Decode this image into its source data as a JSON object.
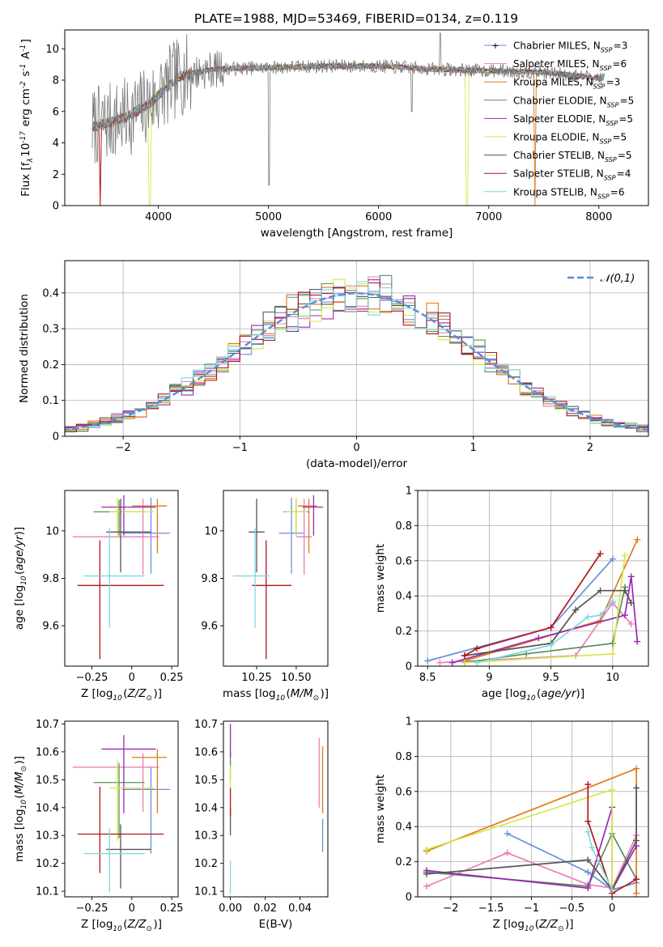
{
  "figure": {
    "title": "PLATE=1988, MJD=53469, FIBERID=0134, z=0.119"
  },
  "models": [
    {
      "name": "Chabrier MILES, N$_{SSP}$=3",
      "color": "#6a8fdb"
    },
    {
      "name": "Salpeter MILES, N$_{SSP}$=6",
      "color": "#e87fb8"
    },
    {
      "name": "Kroupa MILES, N$_{SSP}$=3",
      "color": "#e07a1f"
    },
    {
      "name": "Chabrier ELODIE, N$_{SSP}$=5",
      "color": "#5a8f5a"
    },
    {
      "name": "Salpeter ELODIE, N$_{SSP}$=5",
      "color": "#9b27b5"
    },
    {
      "name": "Kroupa ELODIE, N$_{SSP}$=5",
      "color": "#d4e84a"
    },
    {
      "name": "Chabrier STELIB, N$_{SSP}$=5",
      "color": "#555555"
    },
    {
      "name": "Salpeter STELIB, N$_{SSP}$=4",
      "color": "#b0161b"
    },
    {
      "name": "Kroupa STELIB, N$_{SSP}$=6",
      "color": "#7dd8e0"
    }
  ],
  "chart_data": [
    {
      "id": "spectrum",
      "type": "line",
      "xlabel": "wavelength [Angstrom, rest frame]",
      "ylabel": "Flux [f$_\\lambda$10$^{-17}$ erg cm$^{-2}$ s$^{-1}$ A$^{-1}$]",
      "xlim": [
        3150,
        8450
      ],
      "ylim": [
        0,
        11.2
      ],
      "xticks": [
        4000,
        5000,
        6000,
        7000,
        8000
      ],
      "yticks": [
        0,
        2,
        4,
        6,
        8,
        10
      ],
      "legend": "upper-right",
      "x_range_data": [
        3400,
        8050
      ],
      "continuum": [
        [
          3400,
          5.0
        ],
        [
          3500,
          5.2
        ],
        [
          3700,
          5.6
        ],
        [
          3900,
          6.4
        ],
        [
          4000,
          7.0
        ],
        [
          4200,
          8.3
        ],
        [
          4500,
          8.7
        ],
        [
          5000,
          8.8
        ],
        [
          5500,
          8.9
        ],
        [
          6000,
          8.9
        ],
        [
          6500,
          8.7
        ],
        [
          7000,
          8.6
        ],
        [
          7500,
          8.5
        ],
        [
          8050,
          8.1
        ]
      ],
      "drops": [
        {
          "model": 2,
          "x": 3470
        },
        {
          "model": 7,
          "x": 3470
        },
        {
          "model": 5,
          "x": 3920
        },
        {
          "model": 5,
          "x": 6800
        },
        {
          "model": 2,
          "x": 7420
        }
      ]
    },
    {
      "id": "residual-histogram",
      "type": "bar",
      "xlabel": "(data-model)/error",
      "ylabel": "Normed distribution",
      "xlim": [
        -2.5,
        2.5
      ],
      "ylim": [
        0,
        0.49
      ],
      "xticks": [
        -2,
        -1,
        0,
        1,
        2
      ],
      "yticks": [
        0.0,
        0.1,
        0.2,
        0.3,
        0.4
      ],
      "bin_width": 0.1,
      "legend": "upper-right",
      "gaussian": {
        "label": "$\\mathcal{N}(0,1)$",
        "mean": 0,
        "sigma": 1,
        "color": "#5b8bd6"
      }
    },
    {
      "id": "age-vs-Z",
      "type": "scatter",
      "xlabel": "Z [log$_{10}$($Z/Z_\\odot$)]",
      "ylabel": "age  [log$_{10}$($age/yr$)]",
      "xlim": [
        -0.42,
        0.29
      ],
      "ylim": [
        9.43,
        10.17
      ],
      "xticks": [
        -0.25,
        0.0,
        0.25
      ],
      "yticks": [
        9.6,
        9.8,
        10.0
      ],
      "points": [
        {
          "model": 0,
          "x": 0.12,
          "y": 9.99,
          "xerr": [
            0.18,
            0.12
          ],
          "yerr": [
            0.17,
            0.15
          ]
        },
        {
          "model": 1,
          "x": 0.07,
          "y": 9.975,
          "xerr": [
            0.44,
            0.1
          ],
          "yerr": [
            0.16,
            0.16
          ]
        },
        {
          "model": 2,
          "x": 0.16,
          "y": 10.105,
          "xerr": [
            0.16,
            0.06
          ],
          "yerr": [
            0.2,
            0.03
          ]
        },
        {
          "model": 3,
          "x": -0.08,
          "y": 10.08,
          "xerr": [
            0.16,
            0.16
          ],
          "yerr": [
            0.1,
            0.05
          ]
        },
        {
          "model": 4,
          "x": -0.05,
          "y": 10.1,
          "xerr": [
            0.14,
            0.2
          ],
          "yerr": [
            0.12,
            0.05
          ]
        },
        {
          "model": 5,
          "x": -0.09,
          "y": 10.08,
          "xerr": [
            0.05,
            0.23
          ],
          "yerr": [
            0.1,
            0.06
          ]
        },
        {
          "model": 6,
          "x": -0.07,
          "y": 9.995,
          "xerr": [
            0.09,
            0.19
          ],
          "yerr": [
            0.17,
            0.14
          ]
        },
        {
          "model": 7,
          "x": -0.2,
          "y": 9.77,
          "xerr": [
            0.14,
            0.4
          ],
          "yerr": [
            0.31,
            0.19
          ]
        },
        {
          "model": 8,
          "x": -0.14,
          "y": 9.81,
          "xerr": [
            0.16,
            0.22
          ],
          "yerr": [
            0.22,
            0.2
          ]
        }
      ]
    },
    {
      "id": "age-vs-mass",
      "type": "scatter",
      "xlabel": "mass [log$_{10}$($M/M_\\odot$)]",
      "ylabel": "",
      "xlim": [
        10.04,
        10.7
      ],
      "ylim": [
        9.43,
        10.17
      ],
      "xticks": [
        10.25,
        10.5
      ],
      "xtick_labels": [
        "10.25",
        "10.50"
      ],
      "yticks": [
        9.6,
        9.8,
        10.0
      ],
      "points": [
        {
          "model": 0,
          "x": 10.47,
          "y": 9.99,
          "xerr": [
            0.08,
            0.08
          ],
          "yerr": [
            0.17,
            0.15
          ]
        },
        {
          "model": 1,
          "x": 10.55,
          "y": 9.975,
          "xerr": [
            0.05,
            0.05
          ],
          "yerr": [
            0.16,
            0.16
          ]
        },
        {
          "model": 2,
          "x": 10.58,
          "y": 10.105,
          "xerr": [
            0.07,
            0.05
          ],
          "yerr": [
            0.2,
            0.03
          ]
        },
        {
          "model": 3,
          "x": 10.5,
          "y": 10.08,
          "xerr": [
            0.08,
            0.08
          ],
          "yerr": [
            0.1,
            0.05
          ]
        },
        {
          "model": 4,
          "x": 10.61,
          "y": 10.1,
          "xerr": [
            0.07,
            0.06
          ],
          "yerr": [
            0.12,
            0.05
          ]
        },
        {
          "model": 5,
          "x": 10.5,
          "y": 10.08,
          "xerr": [
            0.07,
            0.07
          ],
          "yerr": [
            0.1,
            0.06
          ]
        },
        {
          "model": 6,
          "x": 10.25,
          "y": 9.995,
          "xerr": [
            0.05,
            0.05
          ],
          "yerr": [
            0.17,
            0.14
          ]
        },
        {
          "model": 7,
          "x": 10.31,
          "y": 9.77,
          "xerr": [
            0.09,
            0.16
          ],
          "yerr": [
            0.31,
            0.19
          ]
        },
        {
          "model": 8,
          "x": 10.24,
          "y": 9.81,
          "xerr": [
            0.14,
            0.09
          ],
          "yerr": [
            0.22,
            0.2
          ]
        }
      ]
    },
    {
      "id": "weight-vs-age",
      "type": "line",
      "xlabel": "age  [log$_{10}$($age/yr$)]",
      "ylabel": "mass weight",
      "xlim": [
        8.42,
        10.29
      ],
      "ylim": [
        0,
        1.0
      ],
      "xticks": [
        8.5,
        9.0,
        9.5,
        10.0
      ],
      "yticks": [
        0.0,
        0.2,
        0.4,
        0.6,
        0.8,
        1.0
      ],
      "series": [
        {
          "model": 0,
          "x": [
            8.5,
            9.5,
            10.0
          ],
          "y": [
            0.03,
            0.22,
            0.61
          ]
        },
        {
          "model": 1,
          "x": [
            8.6,
            9.7,
            10.0,
            10.15
          ],
          "y": [
            0.02,
            0.06,
            0.36,
            0.24
          ]
        },
        {
          "model": 2,
          "x": [
            8.8,
            9.9,
            10.2
          ],
          "y": [
            0.03,
            0.26,
            0.72
          ]
        },
        {
          "model": 3,
          "x": [
            8.8,
            9.3,
            10.0,
            10.1
          ],
          "y": [
            0.02,
            0.07,
            0.13,
            0.45
          ]
        },
        {
          "model": 4,
          "x": [
            8.7,
            9.4,
            10.1,
            10.15,
            10.2
          ],
          "y": [
            0.02,
            0.16,
            0.29,
            0.51,
            0.14
          ]
        },
        {
          "model": 5,
          "x": [
            8.8,
            10.0,
            10.1
          ],
          "y": [
            0.02,
            0.07,
            0.63
          ]
        },
        {
          "model": 6,
          "x": [
            8.8,
            9.5,
            9.7,
            9.9,
            10.1,
            10.15
          ],
          "y": [
            0.06,
            0.13,
            0.32,
            0.43,
            0.43,
            0.36
          ]
        },
        {
          "model": 7,
          "x": [
            8.8,
            8.9,
            9.5,
            9.9
          ],
          "y": [
            0.06,
            0.1,
            0.22,
            0.64
          ]
        },
        {
          "model": 8,
          "x": [
            8.9,
            9.5,
            9.8,
            9.9,
            10.0
          ],
          "y": [
            0.02,
            0.12,
            0.28,
            0.29,
            0.37
          ]
        }
      ]
    },
    {
      "id": "mass-vs-Z",
      "type": "scatter",
      "xlabel": "Z [log$_{10}$($Z/Z_\\odot$)]",
      "ylabel": "mass [log$_{10}$($M/M_\\odot$)]",
      "xlim": [
        -0.42,
        0.29
      ],
      "ylim": [
        10.08,
        10.71
      ],
      "xticks": [
        -0.25,
        0.0,
        0.25
      ],
      "yticks": [
        10.1,
        10.2,
        10.3,
        10.4,
        10.5,
        10.6,
        10.7
      ],
      "points": [
        {
          "model": 0,
          "x": 0.12,
          "y": 10.465,
          "xerr": [
            0.18,
            0.12
          ],
          "yerr": [
            0.23,
            0.08
          ]
        },
        {
          "model": 1,
          "x": 0.07,
          "y": 10.545,
          "xerr": [
            0.44,
            0.1
          ],
          "yerr": [
            0.16,
            0.05
          ]
        },
        {
          "model": 2,
          "x": 0.16,
          "y": 10.58,
          "xerr": [
            0.16,
            0.06
          ],
          "yerr": [
            0.2,
            0.03
          ]
        },
        {
          "model": 3,
          "x": -0.08,
          "y": 10.49,
          "xerr": [
            0.16,
            0.16
          ],
          "yerr": [
            0.2,
            0.07
          ]
        },
        {
          "model": 4,
          "x": -0.05,
          "y": 10.61,
          "xerr": [
            0.14,
            0.2
          ],
          "yerr": [
            0.23,
            0.05
          ]
        },
        {
          "model": 5,
          "x": -0.09,
          "y": 10.47,
          "xerr": [
            0.05,
            0.23
          ],
          "yerr": [
            0.19,
            0.1
          ]
        },
        {
          "model": 6,
          "x": -0.07,
          "y": 10.25,
          "xerr": [
            0.09,
            0.19
          ],
          "yerr": [
            0.14,
            0.09
          ]
        },
        {
          "model": 7,
          "x": -0.2,
          "y": 10.305,
          "xerr": [
            0.14,
            0.4
          ],
          "yerr": [
            0.14,
            0.17
          ]
        },
        {
          "model": 8,
          "x": -0.14,
          "y": 10.235,
          "xerr": [
            0.16,
            0.22
          ],
          "yerr": [
            0.14,
            0.09
          ]
        }
      ]
    },
    {
      "id": "mass-vs-EBV",
      "type": "scatter",
      "xlabel": "E(B-V)",
      "ylabel": "",
      "xlim": [
        -0.004,
        0.056
      ],
      "ylim": [
        10.08,
        10.71
      ],
      "xticks": [
        0.0,
        0.02,
        0.04
      ],
      "xtick_labels": [
        "0.00",
        "0.02",
        "0.04"
      ],
      "yticks": [
        10.1,
        10.2,
        10.3,
        10.4,
        10.5,
        10.6,
        10.7
      ],
      "points": [
        {
          "model": 0,
          "x": 0.053,
          "y": 10.3,
          "yerr": [
            0.06,
            0.06
          ]
        },
        {
          "model": 1,
          "x": 0.051,
          "y": 10.54,
          "yerr": [
            0.14,
            0.11
          ]
        },
        {
          "model": 2,
          "x": 0.053,
          "y": 10.5,
          "yerr": [
            0.12,
            0.12
          ]
        },
        {
          "model": 3,
          "x": 0.0,
          "y": 10.55,
          "yerr": [
            0.05,
            0.05
          ]
        },
        {
          "model": 4,
          "x": 0.0,
          "y": 10.64,
          "yerr": [
            0.06,
            0.06
          ]
        },
        {
          "model": 5,
          "x": 0.0,
          "y": 10.5,
          "yerr": [
            0.05,
            0.05
          ]
        },
        {
          "model": 6,
          "x": 0.0,
          "y": 10.35,
          "yerr": [
            0.05,
            0.05
          ]
        },
        {
          "model": 7,
          "x": 0.0,
          "y": 10.42,
          "yerr": [
            0.05,
            0.05
          ]
        },
        {
          "model": 8,
          "x": 0.0,
          "y": 10.15,
          "yerr": [
            0.06,
            0.06
          ]
        }
      ]
    },
    {
      "id": "weight-vs-Z",
      "type": "line",
      "xlabel": "Z [log$_{10}$($Z/Z_\\odot$)]",
      "ylabel": "mass weight",
      "xlim": [
        -2.41,
        0.45
      ],
      "ylim": [
        0,
        1.0
      ],
      "xticks": [
        -2.0,
        -1.5,
        -1.0,
        -0.5,
        0.0
      ],
      "yticks": [
        0.0,
        0.2,
        0.4,
        0.6,
        0.8,
        1.0
      ],
      "series": [
        {
          "model": 0,
          "x": [
            -1.3,
            -0.3,
            0.0,
            0.3
          ],
          "y": [
            0.36,
            0.14,
            0.04,
            0.08
          ]
        },
        {
          "model": 1,
          "x": [
            -2.3,
            -1.3,
            -0.3,
            0.0,
            0.3
          ],
          "y": [
            0.06,
            0.25,
            0.07,
            0.05,
            0.35
          ]
        },
        {
          "model": 2,
          "x": [
            -2.3,
            0.3,
            0.3
          ],
          "y": [
            0.26,
            0.73,
            0.02
          ]
        },
        {
          "model": 3,
          "x": [
            -2.3,
            -0.3,
            0.0,
            0.3
          ],
          "y": [
            0.14,
            0.06,
            0.36,
            0.1
          ]
        },
        {
          "model": 4,
          "x": [
            -2.3,
            -0.3,
            0.0,
            0.0,
            0.3
          ],
          "y": [
            0.15,
            0.05,
            0.51,
            0.04,
            0.29
          ]
        },
        {
          "model": 5,
          "x": [
            -2.3,
            0.0,
            0.0
          ],
          "y": [
            0.27,
            0.61,
            0.07
          ]
        },
        {
          "model": 6,
          "x": [
            -2.3,
            -0.3,
            0.0,
            0.3,
            0.3
          ],
          "y": [
            0.13,
            0.21,
            0.04,
            0.32,
            0.62
          ]
        },
        {
          "model": 7,
          "x": [
            -0.3,
            -0.3,
            0.0,
            0.3
          ],
          "y": [
            0.64,
            0.43,
            0.02,
            0.1
          ]
        },
        {
          "model": 8,
          "x": [
            -0.3,
            -0.25,
            0.0
          ],
          "y": [
            0.37,
            0.28,
            0.04
          ]
        }
      ]
    }
  ]
}
